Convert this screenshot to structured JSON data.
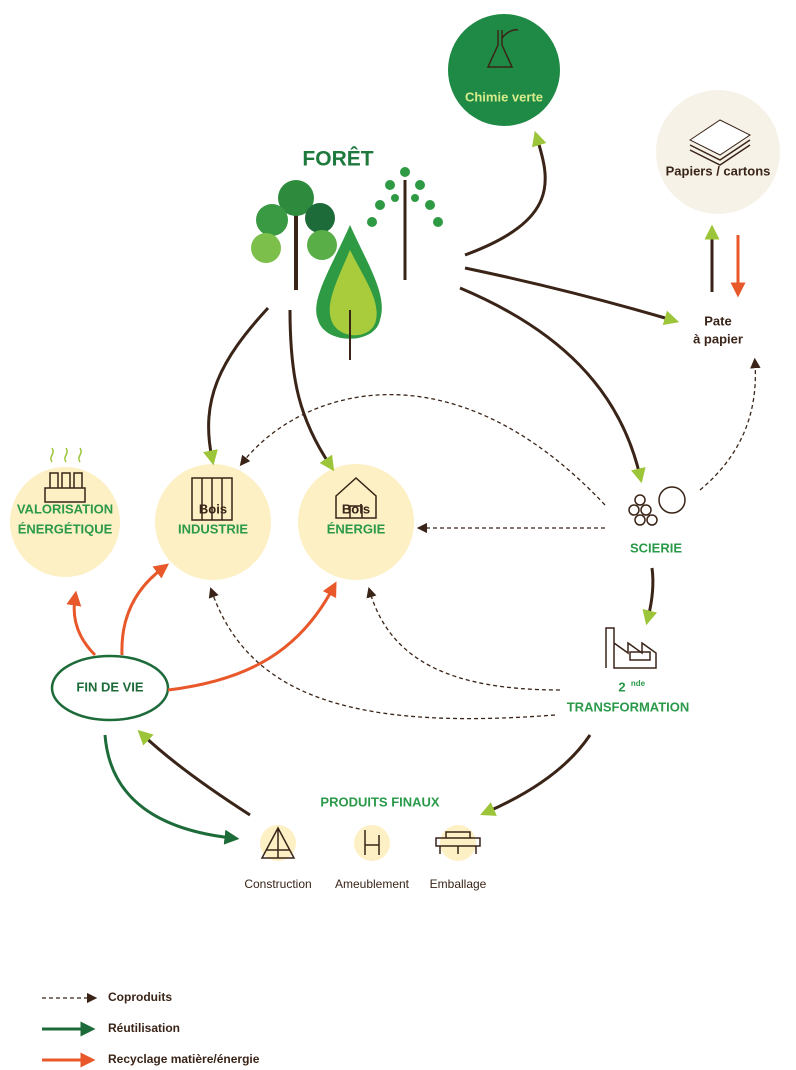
{
  "title": "FORÊT",
  "nodes": {
    "chimie": {
      "label": "Chimie verte"
    },
    "papiers": {
      "label": "Papiers / cartons"
    },
    "pate": {
      "lines": [
        "Pate",
        "à papier"
      ]
    },
    "valorisation": {
      "lines": [
        "VALORISATION",
        "ÉNERGÉTIQUE"
      ]
    },
    "bois_industrie": {
      "lines": [
        "Bois",
        "INDUSTRIE"
      ]
    },
    "bois_energie": {
      "lines": [
        "Bois",
        "ÉNERGIE"
      ]
    },
    "scierie": {
      "label": "SCIERIE"
    },
    "transformation": {
      "number": "2",
      "superscript": "nde",
      "label": "TRANSFORMATION"
    },
    "fin_de_vie": {
      "label": "FIN DE VIE"
    }
  },
  "produits": {
    "title": "PRODUITS FINAUX",
    "items": [
      "Construction",
      "Ameublement",
      "Emballage"
    ]
  },
  "legend": [
    "Coproduits",
    "Réutilisation",
    "Recyclage matière/énergie"
  ]
}
